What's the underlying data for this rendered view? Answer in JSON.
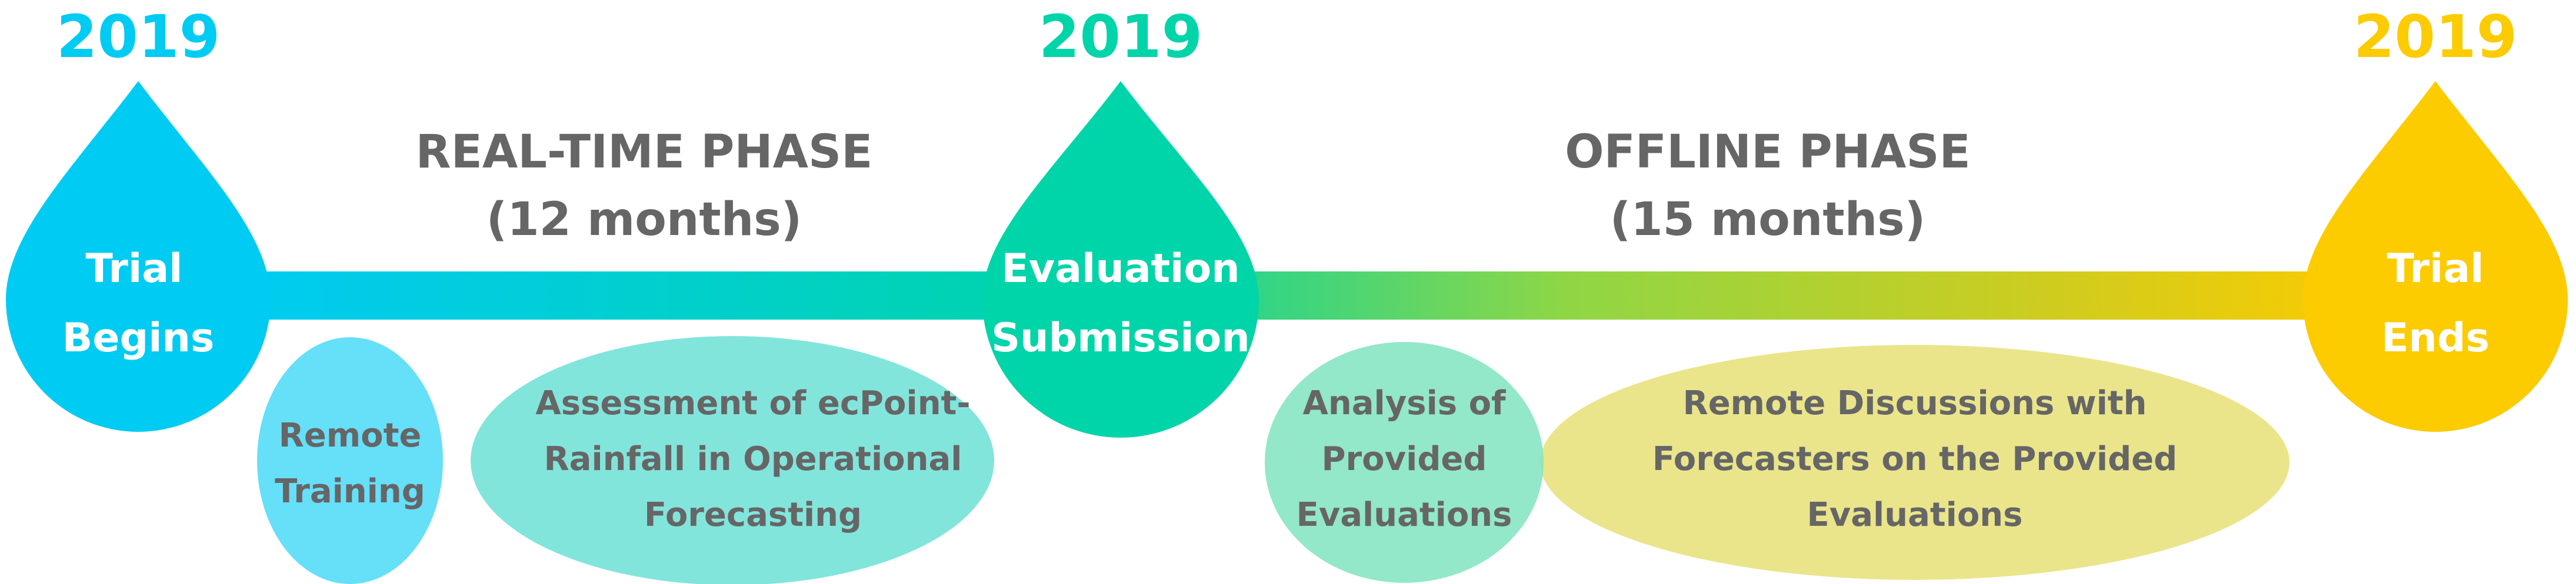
{
  "timeline": {
    "bar_gradient": [
      "#00cbf2",
      "#00d4a9",
      "#8fd645",
      "#d0cc1e",
      "#fccb00"
    ],
    "milestones": [
      {
        "year": "2019",
        "label_line1": "Trial",
        "label_line2": "Begins",
        "color": "#00cbf2",
        "icon": "water-drop-icon"
      },
      {
        "year": "2019",
        "label_line1": "Evaluation",
        "label_line2": "Submission",
        "color": "#00d4a9",
        "icon": "water-drop-icon"
      },
      {
        "year": "2019",
        "label_line1": "Trial",
        "label_line2": "Ends",
        "color": "#fccb00",
        "icon": "water-drop-icon"
      }
    ],
    "phases": [
      {
        "title": "REAL-TIME PHASE",
        "duration": "(12 months)"
      },
      {
        "title": "OFFLINE PHASE",
        "duration": "(15 months)"
      }
    ],
    "activities": [
      {
        "lines": [
          "Remote",
          "Training"
        ],
        "color": "#33d4f7"
      },
      {
        "lines": [
          "Assessment of ecPoint-",
          "Rainfall in Operational",
          "Forecasting"
        ],
        "color": "#58dcd0"
      },
      {
        "lines": [
          "Analysis of",
          "Provided",
          "Evaluations"
        ],
        "color": "#86e5c2"
      },
      {
        "lines": [
          "Remote Discussions with",
          "Forecasters on the Provided",
          "Evaluations"
        ],
        "color": "#e8e27e"
      }
    ]
  }
}
